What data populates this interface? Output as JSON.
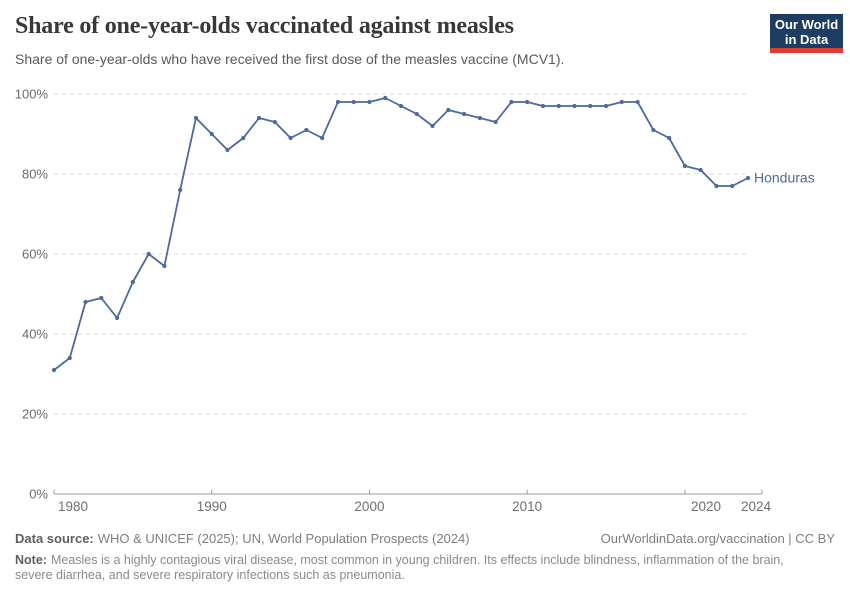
{
  "header": {
    "title": "Share of one-year-olds vaccinated against measles",
    "subtitle": "Share of one-year-olds who have received the first dose of the measles vaccine (MCV1)."
  },
  "logo": {
    "line1": "Our World",
    "line2": "in Data"
  },
  "chart_data": {
    "type": "line",
    "title": "Share of one-year-olds vaccinated against measles",
    "x": [
      1980,
      1981,
      1982,
      1983,
      1984,
      1985,
      1986,
      1987,
      1988,
      1989,
      1990,
      1991,
      1992,
      1993,
      1994,
      1995,
      1996,
      1997,
      1998,
      1999,
      2000,
      2001,
      2002,
      2003,
      2004,
      2005,
      2006,
      2007,
      2008,
      2009,
      2010,
      2011,
      2012,
      2013,
      2014,
      2015,
      2016,
      2017,
      2018,
      2019,
      2020,
      2021,
      2022,
      2023,
      2024
    ],
    "series": [
      {
        "name": "Honduras",
        "color": "#4C6A9C",
        "values": [
          31,
          34,
          48,
          49,
          44,
          53,
          60,
          57,
          76,
          94,
          90,
          86,
          89,
          94,
          93,
          89,
          91,
          89,
          98,
          98,
          98,
          99,
          97,
          95,
          92,
          96,
          95,
          94,
          93,
          98,
          98,
          97,
          97,
          97,
          97,
          97,
          98,
          98,
          91,
          89,
          82,
          81,
          77,
          77,
          79
        ]
      }
    ],
    "xlabel": "",
    "ylabel": "",
    "ylim": [
      0,
      100
    ],
    "yticks": [
      0,
      20,
      40,
      60,
      80,
      100
    ],
    "ytick_suffix": "%",
    "xticks": [
      1980,
      1990,
      2000,
      2010,
      2020,
      2024
    ],
    "grid": true,
    "legend_position": "line-end-label"
  },
  "colors": {
    "line": "#4C6A9C",
    "gridline": "#d9d9d9",
    "axis": "#9e9e9e",
    "y_tick_label": "#6b6b6b",
    "x_tick_label": "#6f6f6f",
    "logo_bg": "#1d3d63",
    "logo_accent": "#dc3e32"
  },
  "footer": {
    "datasource_label": "Data source:",
    "datasource_text": "WHO & UNICEF (2025); UN, World Population Prospects (2024)",
    "link": "OurWorldinData.org/vaccination | CC BY",
    "note_label": "Note:",
    "note_text": "Measles is a highly contagious viral disease, most common in young children. Its effects include blindness, inflammation of the brain, severe diarrhea, and severe respiratory infections such as pneumonia."
  }
}
